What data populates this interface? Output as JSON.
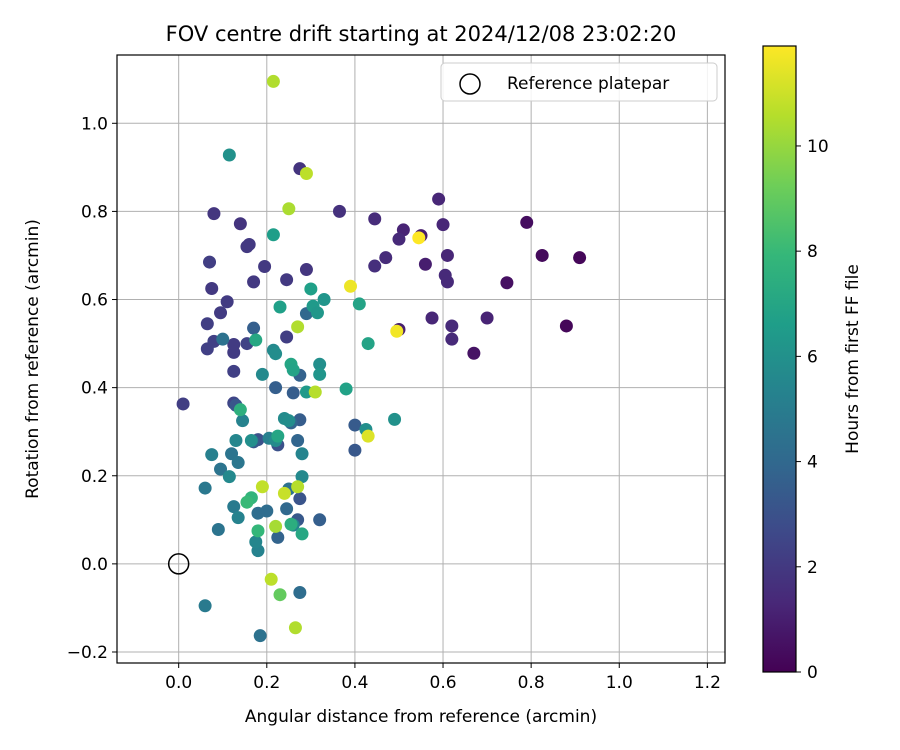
{
  "chart_data": {
    "type": "scatter",
    "title": "FOV centre drift starting at 2024/12/08 23:02:20",
    "xlabel": "Angular distance from reference (arcmin)",
    "ylabel": "Rotation from reference (arcmin)",
    "xlim": [
      -0.14,
      1.24
    ],
    "ylim": [
      -0.225,
      1.155
    ],
    "xticks": [
      0.0,
      0.2,
      0.4,
      0.6,
      0.8,
      1.0,
      1.2
    ],
    "xtick_labels": [
      "0.0",
      "0.2",
      "0.4",
      "0.6",
      "0.8",
      "1.0",
      "1.2"
    ],
    "yticks": [
      -0.2,
      0.0,
      0.2,
      0.4,
      0.6,
      0.8,
      1.0
    ],
    "ytick_labels": [
      "−0.2",
      "0.0",
      "0.2",
      "0.4",
      "0.6",
      "0.8",
      "1.0"
    ],
    "grid": true,
    "legend": {
      "position": "top-right",
      "entries": [
        "Reference platepar"
      ]
    },
    "reference_point": {
      "x": 0.0,
      "y": 0.0,
      "label": "Reference platepar"
    },
    "colorbar": {
      "label": "Hours from first FF file",
      "range": [
        0,
        11.9
      ],
      "ticks": [
        0,
        2,
        4,
        6,
        8,
        10
      ],
      "tick_labels": [
        "0",
        "2",
        "4",
        "6",
        "8",
        "10"
      ],
      "colormap": "viridis"
    },
    "colormap_stops": [
      "#440154",
      "#482878",
      "#3e4989",
      "#31688e",
      "#26828e",
      "#1f9e89",
      "#35b779",
      "#6ece58",
      "#b5de2b",
      "#fde725"
    ],
    "points": [
      {
        "x": 0.91,
        "y": 0.695,
        "h": 0.2
      },
      {
        "x": 0.88,
        "y": 0.54,
        "h": 0.2
      },
      {
        "x": 0.825,
        "y": 0.7,
        "h": 0.3
      },
      {
        "x": 0.79,
        "y": 0.775,
        "h": 0.4
      },
      {
        "x": 0.745,
        "y": 0.638,
        "h": 0.5
      },
      {
        "x": 0.67,
        "y": 0.478,
        "h": 0.6
      },
      {
        "x": 0.7,
        "y": 0.558,
        "h": 1.2
      },
      {
        "x": 0.62,
        "y": 0.54,
        "h": 1.4
      },
      {
        "x": 0.62,
        "y": 0.51,
        "h": 1.4
      },
      {
        "x": 0.61,
        "y": 0.7,
        "h": 1.3
      },
      {
        "x": 0.605,
        "y": 0.655,
        "h": 1.4
      },
      {
        "x": 0.61,
        "y": 0.64,
        "h": 1.4
      },
      {
        "x": 0.6,
        "y": 0.77,
        "h": 1.3
      },
      {
        "x": 0.59,
        "y": 0.828,
        "h": 1.3
      },
      {
        "x": 0.575,
        "y": 0.558,
        "h": 1.3
      },
      {
        "x": 0.56,
        "y": 0.68,
        "h": 1.0
      },
      {
        "x": 0.55,
        "y": 0.745,
        "h": 0.9
      },
      {
        "x": 0.51,
        "y": 0.758,
        "h": 1.2
      },
      {
        "x": 0.5,
        "y": 0.737,
        "h": 1.4
      },
      {
        "x": 0.5,
        "y": 0.532,
        "h": 1.0
      },
      {
        "x": 0.47,
        "y": 0.695,
        "h": 1.5
      },
      {
        "x": 0.445,
        "y": 0.783,
        "h": 1.5
      },
      {
        "x": 0.445,
        "y": 0.676,
        "h": 1.6
      },
      {
        "x": 0.365,
        "y": 0.8,
        "h": 1.7
      },
      {
        "x": 0.4,
        "y": 0.315,
        "h": 3.4
      },
      {
        "x": 0.4,
        "y": 0.258,
        "h": 3.3
      },
      {
        "x": 0.29,
        "y": 0.668,
        "h": 1.9
      },
      {
        "x": 0.275,
        "y": 0.897,
        "h": 1.8
      },
      {
        "x": 0.245,
        "y": 0.645,
        "h": 2.0
      },
      {
        "x": 0.195,
        "y": 0.675,
        "h": 2.0
      },
      {
        "x": 0.17,
        "y": 0.64,
        "h": 2.0
      },
      {
        "x": 0.16,
        "y": 0.725,
        "h": 2.0
      },
      {
        "x": 0.155,
        "y": 0.72,
        "h": 2.0
      },
      {
        "x": 0.14,
        "y": 0.772,
        "h": 1.8
      },
      {
        "x": 0.08,
        "y": 0.795,
        "h": 1.9
      },
      {
        "x": 0.07,
        "y": 0.685,
        "h": 2.2
      },
      {
        "x": 0.075,
        "y": 0.625,
        "h": 2.0
      },
      {
        "x": 0.11,
        "y": 0.595,
        "h": 2.1
      },
      {
        "x": 0.095,
        "y": 0.57,
        "h": 2.1
      },
      {
        "x": 0.065,
        "y": 0.545,
        "h": 2.2
      },
      {
        "x": 0.08,
        "y": 0.505,
        "h": 2.3
      },
      {
        "x": 0.065,
        "y": 0.488,
        "h": 2.3
      },
      {
        "x": 0.125,
        "y": 0.498,
        "h": 2.1
      },
      {
        "x": 0.125,
        "y": 0.48,
        "h": 2.1
      },
      {
        "x": 0.155,
        "y": 0.5,
        "h": 2.4
      },
      {
        "x": 0.125,
        "y": 0.437,
        "h": 2.3
      },
      {
        "x": 0.245,
        "y": 0.515,
        "h": 2.2
      },
      {
        "x": 0.01,
        "y": 0.363,
        "h": 2.2
      },
      {
        "x": 0.125,
        "y": 0.365,
        "h": 2.5
      },
      {
        "x": 0.17,
        "y": 0.535,
        "h": 3.6
      },
      {
        "x": 0.1,
        "y": 0.51,
        "h": 4.5
      },
      {
        "x": 0.13,
        "y": 0.36,
        "h": 3.2
      },
      {
        "x": 0.18,
        "y": 0.282,
        "h": 3.0
      },
      {
        "x": 0.17,
        "y": 0.277,
        "h": 3.4
      },
      {
        "x": 0.225,
        "y": 0.27,
        "h": 3.0
      },
      {
        "x": 0.22,
        "y": 0.4,
        "h": 3.6
      },
      {
        "x": 0.26,
        "y": 0.388,
        "h": 3.5
      },
      {
        "x": 0.275,
        "y": 0.428,
        "h": 3.7
      },
      {
        "x": 0.29,
        "y": 0.568,
        "h": 4.0
      },
      {
        "x": 0.275,
        "y": 0.327,
        "h": 3.5
      },
      {
        "x": 0.255,
        "y": 0.32,
        "h": 3.9
      },
      {
        "x": 0.27,
        "y": 0.28,
        "h": 3.9
      },
      {
        "x": 0.275,
        "y": 0.148,
        "h": 3.1
      },
      {
        "x": 0.27,
        "y": 0.1,
        "h": 3.3
      },
      {
        "x": 0.32,
        "y": 0.1,
        "h": 3.6
      },
      {
        "x": 0.225,
        "y": 0.06,
        "h": 3.8
      },
      {
        "x": 0.245,
        "y": 0.125,
        "h": 4.0
      },
      {
        "x": 0.2,
        "y": 0.12,
        "h": 4.2
      },
      {
        "x": 0.18,
        "y": 0.115,
        "h": 4.2
      },
      {
        "x": 0.25,
        "y": 0.17,
        "h": 4.5
      },
      {
        "x": 0.275,
        "y": -0.065,
        "h": 4.2
      },
      {
        "x": 0.06,
        "y": -0.095,
        "h": 4.9
      },
      {
        "x": 0.185,
        "y": -0.163,
        "h": 4.5
      },
      {
        "x": 0.09,
        "y": 0.078,
        "h": 4.6
      },
      {
        "x": 0.06,
        "y": 0.172,
        "h": 4.8
      },
      {
        "x": 0.095,
        "y": 0.215,
        "h": 4.6
      },
      {
        "x": 0.12,
        "y": 0.25,
        "h": 4.6
      },
      {
        "x": 0.135,
        "y": 0.23,
        "h": 4.7
      },
      {
        "x": 0.125,
        "y": 0.13,
        "h": 4.9
      },
      {
        "x": 0.135,
        "y": 0.105,
        "h": 5.3
      },
      {
        "x": 0.075,
        "y": 0.248,
        "h": 5.2
      },
      {
        "x": 0.115,
        "y": 0.198,
        "h": 5.6
      },
      {
        "x": 0.13,
        "y": 0.28,
        "h": 5.5
      },
      {
        "x": 0.145,
        "y": 0.325,
        "h": 5.3
      },
      {
        "x": 0.205,
        "y": 0.285,
        "h": 5.2
      },
      {
        "x": 0.18,
        "y": 0.03,
        "h": 5.3
      },
      {
        "x": 0.175,
        "y": 0.05,
        "h": 5.5
      },
      {
        "x": 0.19,
        "y": 0.43,
        "h": 5.6
      },
      {
        "x": 0.215,
        "y": 0.485,
        "h": 5.6
      },
      {
        "x": 0.22,
        "y": 0.477,
        "h": 5.8
      },
      {
        "x": 0.22,
        "y": 0.28,
        "h": 5.7
      },
      {
        "x": 0.28,
        "y": 0.198,
        "h": 5.6
      },
      {
        "x": 0.28,
        "y": 0.25,
        "h": 5.4
      },
      {
        "x": 0.24,
        "y": 0.33,
        "h": 5.7
      },
      {
        "x": 0.25,
        "y": 0.325,
        "h": 5.8
      },
      {
        "x": 0.26,
        "y": 0.088,
        "h": 5.4
      },
      {
        "x": 0.33,
        "y": 0.6,
        "h": 6.2
      },
      {
        "x": 0.305,
        "y": 0.585,
        "h": 6.4
      },
      {
        "x": 0.315,
        "y": 0.57,
        "h": 6.3
      },
      {
        "x": 0.29,
        "y": 0.39,
        "h": 6.4
      },
      {
        "x": 0.32,
        "y": 0.453,
        "h": 5.9
      },
      {
        "x": 0.32,
        "y": 0.43,
        "h": 6.2
      },
      {
        "x": 0.3,
        "y": 0.624,
        "h": 6.7
      },
      {
        "x": 0.215,
        "y": 0.747,
        "h": 6.6
      },
      {
        "x": 0.115,
        "y": 0.928,
        "h": 6.0
      },
      {
        "x": 0.165,
        "y": 0.28,
        "h": 5.9
      },
      {
        "x": 0.23,
        "y": 0.583,
        "h": 6.7
      },
      {
        "x": 0.41,
        "y": 0.59,
        "h": 6.9
      },
      {
        "x": 0.425,
        "y": 0.305,
        "h": 5.9
      },
      {
        "x": 0.43,
        "y": 0.5,
        "h": 6.9
      },
      {
        "x": 0.49,
        "y": 0.328,
        "h": 6.0
      },
      {
        "x": 0.38,
        "y": 0.397,
        "h": 6.8
      },
      {
        "x": 0.255,
        "y": 0.453,
        "h": 7.0
      },
      {
        "x": 0.26,
        "y": 0.44,
        "h": 6.9
      },
      {
        "x": 0.175,
        "y": 0.508,
        "h": 7.1
      },
      {
        "x": 0.225,
        "y": 0.29,
        "h": 7.0
      },
      {
        "x": 0.14,
        "y": 0.35,
        "h": 7.5
      },
      {
        "x": 0.165,
        "y": 0.15,
        "h": 7.8
      },
      {
        "x": 0.155,
        "y": 0.14,
        "h": 8.0
      },
      {
        "x": 0.18,
        "y": 0.075,
        "h": 7.9
      },
      {
        "x": 0.255,
        "y": 0.09,
        "h": 7.4
      },
      {
        "x": 0.28,
        "y": 0.068,
        "h": 7.1
      },
      {
        "x": 0.23,
        "y": -0.07,
        "h": 9.0
      },
      {
        "x": 0.21,
        "y": -0.035,
        "h": 10.7
      },
      {
        "x": 0.265,
        "y": -0.145,
        "h": 10.5
      },
      {
        "x": 0.22,
        "y": 0.085,
        "h": 10.3
      },
      {
        "x": 0.24,
        "y": 0.16,
        "h": 10.9
      },
      {
        "x": 0.19,
        "y": 0.175,
        "h": 10.8
      },
      {
        "x": 0.27,
        "y": 0.175,
        "h": 10.6
      },
      {
        "x": 0.31,
        "y": 0.39,
        "h": 10.6
      },
      {
        "x": 0.27,
        "y": 0.538,
        "h": 10.5
      },
      {
        "x": 0.25,
        "y": 0.806,
        "h": 10.4
      },
      {
        "x": 0.29,
        "y": 0.886,
        "h": 10.7
      },
      {
        "x": 0.215,
        "y": 1.095,
        "h": 10.5
      },
      {
        "x": 0.43,
        "y": 0.29,
        "h": 11.3
      },
      {
        "x": 0.39,
        "y": 0.63,
        "h": 11.6
      },
      {
        "x": 0.495,
        "y": 0.528,
        "h": 11.7
      },
      {
        "x": 0.545,
        "y": 0.74,
        "h": 11.9
      }
    ]
  }
}
